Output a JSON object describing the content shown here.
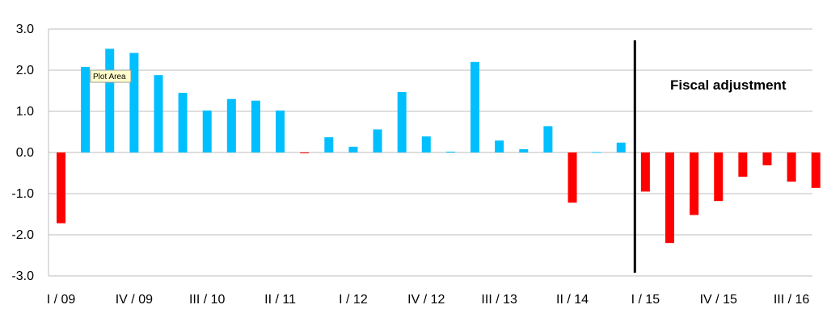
{
  "chart_data": {
    "type": "bar",
    "title": "",
    "xlabel": "",
    "ylabel": "",
    "ylim": [
      -3.0,
      3.0
    ],
    "yticks": [
      3.0,
      2.0,
      1.0,
      0.0,
      -1.0,
      -2.0,
      -3.0
    ],
    "ytick_labels": [
      "3.0",
      "2.0",
      "1.0",
      "0.0",
      "-1.0",
      "-2.0",
      "-3.0"
    ],
    "grid": "horizontal",
    "categories": [
      "I / 09",
      "II / 09",
      "III / 09",
      "IV / 09",
      "I / 10",
      "II / 10",
      "III / 10",
      "IV / 10",
      "I / 11",
      "II / 11",
      "III / 11",
      "IV / 11",
      "I / 12",
      "II / 12",
      "III / 12",
      "IV / 12",
      "I / 13",
      "II / 13",
      "III / 13",
      "IV / 13",
      "I / 14",
      "II / 14",
      "III / 14",
      "IV / 14",
      "I / 15",
      "II / 15",
      "III / 15",
      "IV / 15",
      "I / 16",
      "II / 16",
      "III / 16",
      "IV / 16"
    ],
    "visible_xtick_labels": [
      "I / 09",
      "IV / 09",
      "III / 10",
      "II / 11",
      "I / 12",
      "IV / 12",
      "III / 13",
      "II / 14",
      "I / 15",
      "IV / 15",
      "III / 16"
    ],
    "values": [
      -1.72,
      2.08,
      2.52,
      2.42,
      1.88,
      1.45,
      1.02,
      1.3,
      1.26,
      1.02,
      -0.02,
      0.37,
      0.14,
      0.56,
      1.47,
      0.39,
      0.02,
      2.2,
      0.29,
      0.08,
      0.64,
      -1.22,
      0.01,
      0.24,
      -0.95,
      -2.2,
      -1.52,
      -1.18,
      -0.59,
      -0.31,
      -0.71,
      -0.86
    ],
    "positive_color": "#00bfff",
    "negative_color": "#ff0000",
    "divider_between": [
      "IV / 14",
      "I / 15"
    ],
    "annotation": "Fiscal adjustment",
    "tooltip": "Plot Area"
  }
}
